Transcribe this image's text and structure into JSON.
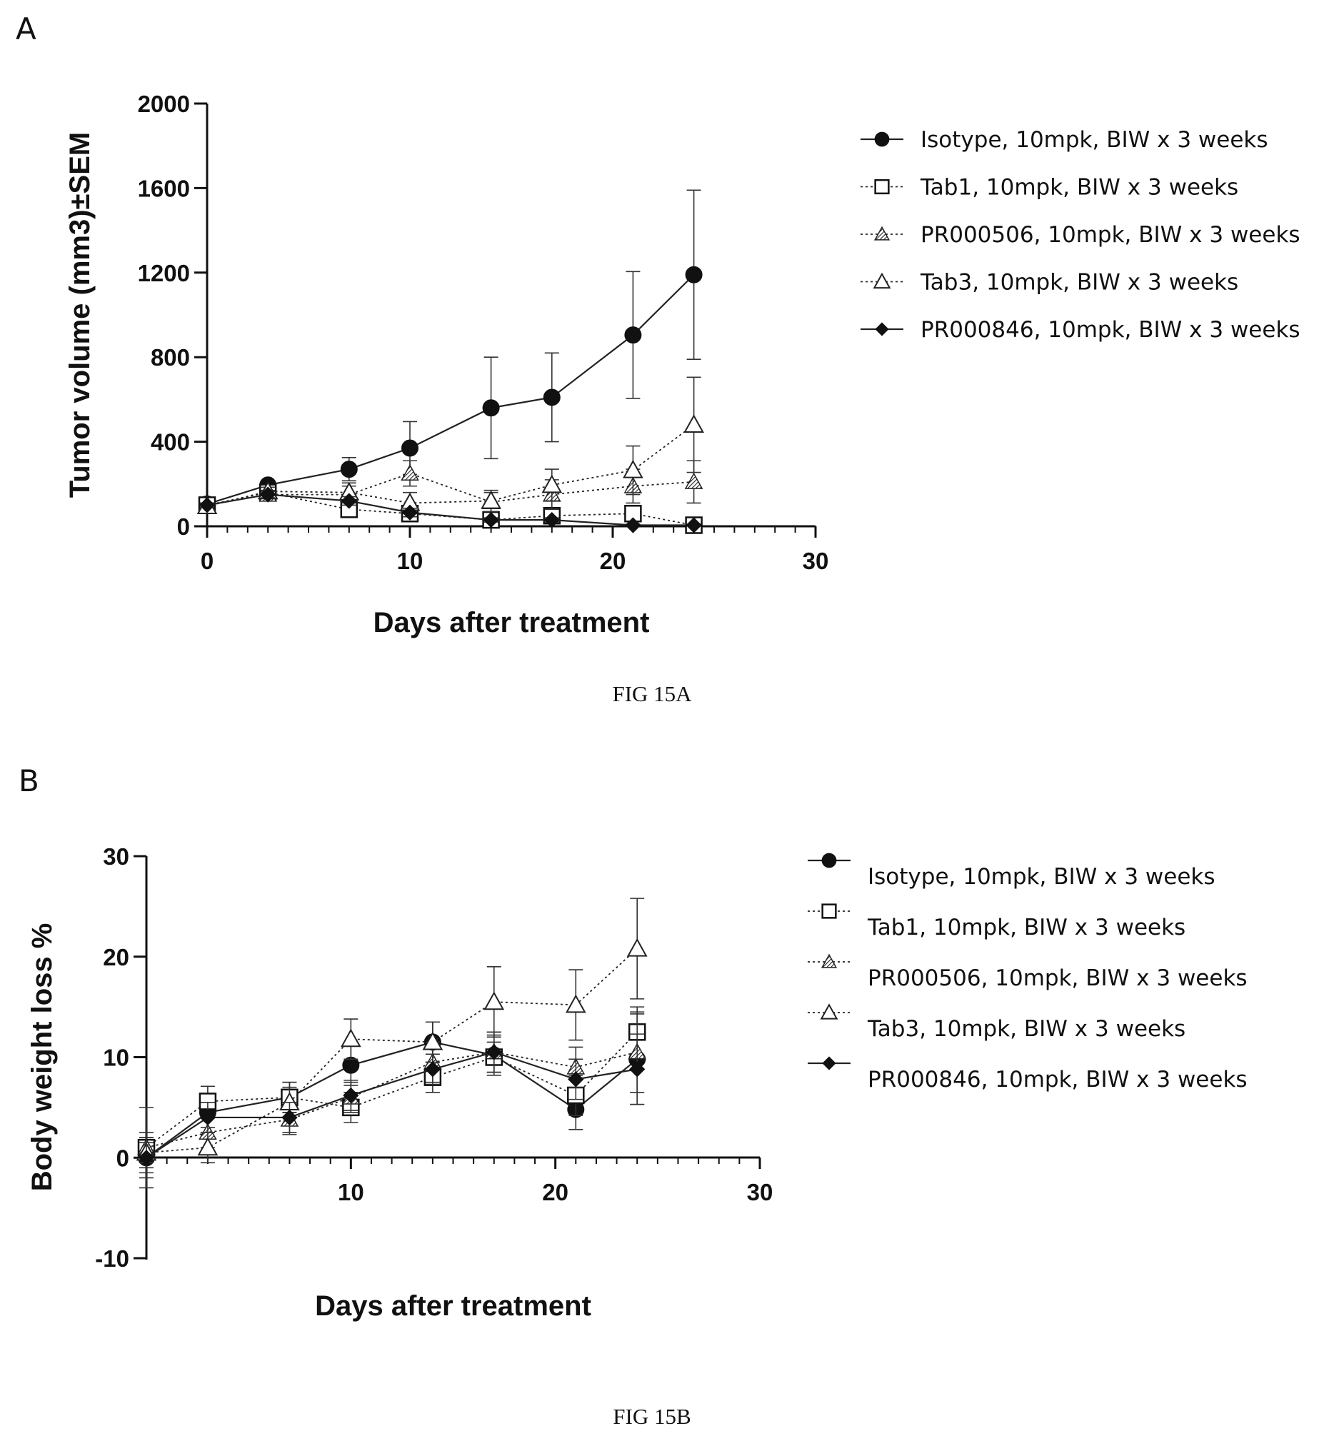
{
  "panel_labels": [
    "A",
    "B"
  ],
  "figure_captions": [
    "FIG 15A",
    "FIG 15B"
  ],
  "chart_data": [
    {
      "type": "line",
      "panel": "A",
      "caption": "FIG 15A",
      "xlabel": "Days after treatment",
      "ylabel": "Tumor volume (mm3)±SEM",
      "xlim": [
        0,
        30
      ],
      "ylim": [
        0,
        2000
      ],
      "xticks": [
        0,
        10,
        20,
        30
      ],
      "yticks": [
        0,
        400,
        800,
        1200,
        1600,
        2000
      ],
      "grid": false,
      "legend_position": "right",
      "series": [
        {
          "name": "Isotype, 10mpk, BIW x 3 weeks",
          "marker": "circle-filled",
          "line": "solid",
          "x": [
            0,
            3,
            7,
            10,
            14,
            17,
            21,
            24
          ],
          "y": [
            105,
            195,
            270,
            370,
            560,
            610,
            905,
            1190
          ],
          "err": [
            15,
            20,
            55,
            125,
            240,
            210,
            300,
            400
          ]
        },
        {
          "name": "Tab1, 10mpk, BIW x 3 weeks",
          "marker": "square-open",
          "line": "dotted",
          "x": [
            0,
            3,
            7,
            10,
            14,
            17,
            21,
            24
          ],
          "y": [
            100,
            160,
            80,
            60,
            30,
            50,
            60,
            5
          ],
          "err": [
            10,
            15,
            25,
            20,
            15,
            20,
            25,
            5
          ]
        },
        {
          "name": "PR000506, 10mpk, BIW x 3 weeks",
          "marker": "triangle-hatched",
          "line": "dotted",
          "x": [
            0,
            3,
            7,
            10,
            14,
            17,
            21,
            24
          ],
          "y": [
            100,
            150,
            150,
            250,
            115,
            150,
            190,
            210
          ],
          "err": [
            10,
            20,
            40,
            60,
            45,
            70,
            80,
            100
          ]
        },
        {
          "name": "Tab3, 10mpk, BIW x 3 weeks",
          "marker": "triangle-open",
          "line": "dotted",
          "x": [
            0,
            3,
            7,
            10,
            14,
            17,
            21,
            24
          ],
          "y": [
            95,
            165,
            160,
            110,
            120,
            195,
            265,
            480
          ],
          "err": [
            10,
            20,
            45,
            50,
            50,
            75,
            115,
            225
          ]
        },
        {
          "name": "PR000846, 10mpk, BIW x 3 weeks",
          "marker": "diamond-filled",
          "line": "solid",
          "x": [
            0,
            3,
            7,
            10,
            14,
            17,
            21,
            24
          ],
          "y": [
            100,
            150,
            120,
            65,
            30,
            30,
            5,
            5
          ],
          "err": [
            10,
            15,
            20,
            20,
            10,
            10,
            5,
            5
          ]
        }
      ]
    },
    {
      "type": "line",
      "panel": "B",
      "caption": "FIG 15B",
      "xlabel": "Days after treatment",
      "ylabel": "Body weight loss %",
      "xlim": [
        0,
        30
      ],
      "ylim": [
        -10,
        30
      ],
      "xticks": [
        10,
        20,
        30
      ],
      "yticks": [
        -10,
        0,
        10,
        20,
        30
      ],
      "grid": false,
      "legend_position": "right",
      "series": [
        {
          "name": "Isotype, 10mpk, BIW x 3 weeks",
          "marker": "circle-filled",
          "line": "solid",
          "x": [
            0,
            3,
            7,
            10,
            14,
            17,
            21,
            24
          ],
          "y": [
            0,
            4.5,
            6.0,
            9.2,
            11.5,
            10.2,
            4.8,
            9.8
          ],
          "err": [
            2.0,
            1.5,
            1.5,
            2.0,
            2.0,
            2.0,
            2.0,
            4.5
          ]
        },
        {
          "name": "Tab1, 10mpk, BIW x 3 weeks",
          "marker": "square-open",
          "line": "dotted",
          "x": [
            0,
            3,
            7,
            10,
            14,
            17,
            21,
            24
          ],
          "y": [
            1.0,
            5.6,
            6.0,
            5.0,
            8.0,
            10.0,
            6.2,
            12.5
          ],
          "err": [
            1.5,
            1.5,
            1.5,
            1.5,
            1.5,
            1.5,
            2.0,
            2.5
          ]
        },
        {
          "name": "PR000506, 10mpk, BIW x 3 weeks",
          "marker": "triangle-hatched",
          "line": "dotted",
          "x": [
            0,
            3,
            7,
            10,
            14,
            17,
            21,
            24
          ],
          "y": [
            1.0,
            2.5,
            3.8,
            6.0,
            9.5,
            10.5,
            9.0,
            10.5
          ],
          "err": [
            4.0,
            1.5,
            1.5,
            1.5,
            2.0,
            2.0,
            2.0,
            4.0
          ]
        },
        {
          "name": "Tab3, 10mpk, BIW x 3 weeks",
          "marker": "triangle-open",
          "line": "dotted",
          "x": [
            0,
            3,
            7,
            10,
            14,
            17,
            21,
            24
          ],
          "y": [
            0.5,
            1.0,
            5.5,
            11.8,
            11.5,
            15.5,
            15.2,
            20.8
          ],
          "err": [
            1.5,
            1.5,
            1.5,
            2.0,
            2.0,
            3.5,
            3.5,
            5.0
          ]
        },
        {
          "name": "PR000846, 10mpk, BIW x 3 weeks",
          "marker": "diamond-filled",
          "line": "solid",
          "x": [
            0,
            3,
            7,
            10,
            14,
            17,
            21,
            24
          ],
          "y": [
            0,
            4.0,
            4.0,
            6.2,
            8.8,
            10.5,
            7.8,
            8.8
          ],
          "err": [
            1.5,
            1.5,
            1.5,
            1.5,
            1.5,
            2.0,
            2.0,
            3.5
          ]
        }
      ]
    }
  ]
}
